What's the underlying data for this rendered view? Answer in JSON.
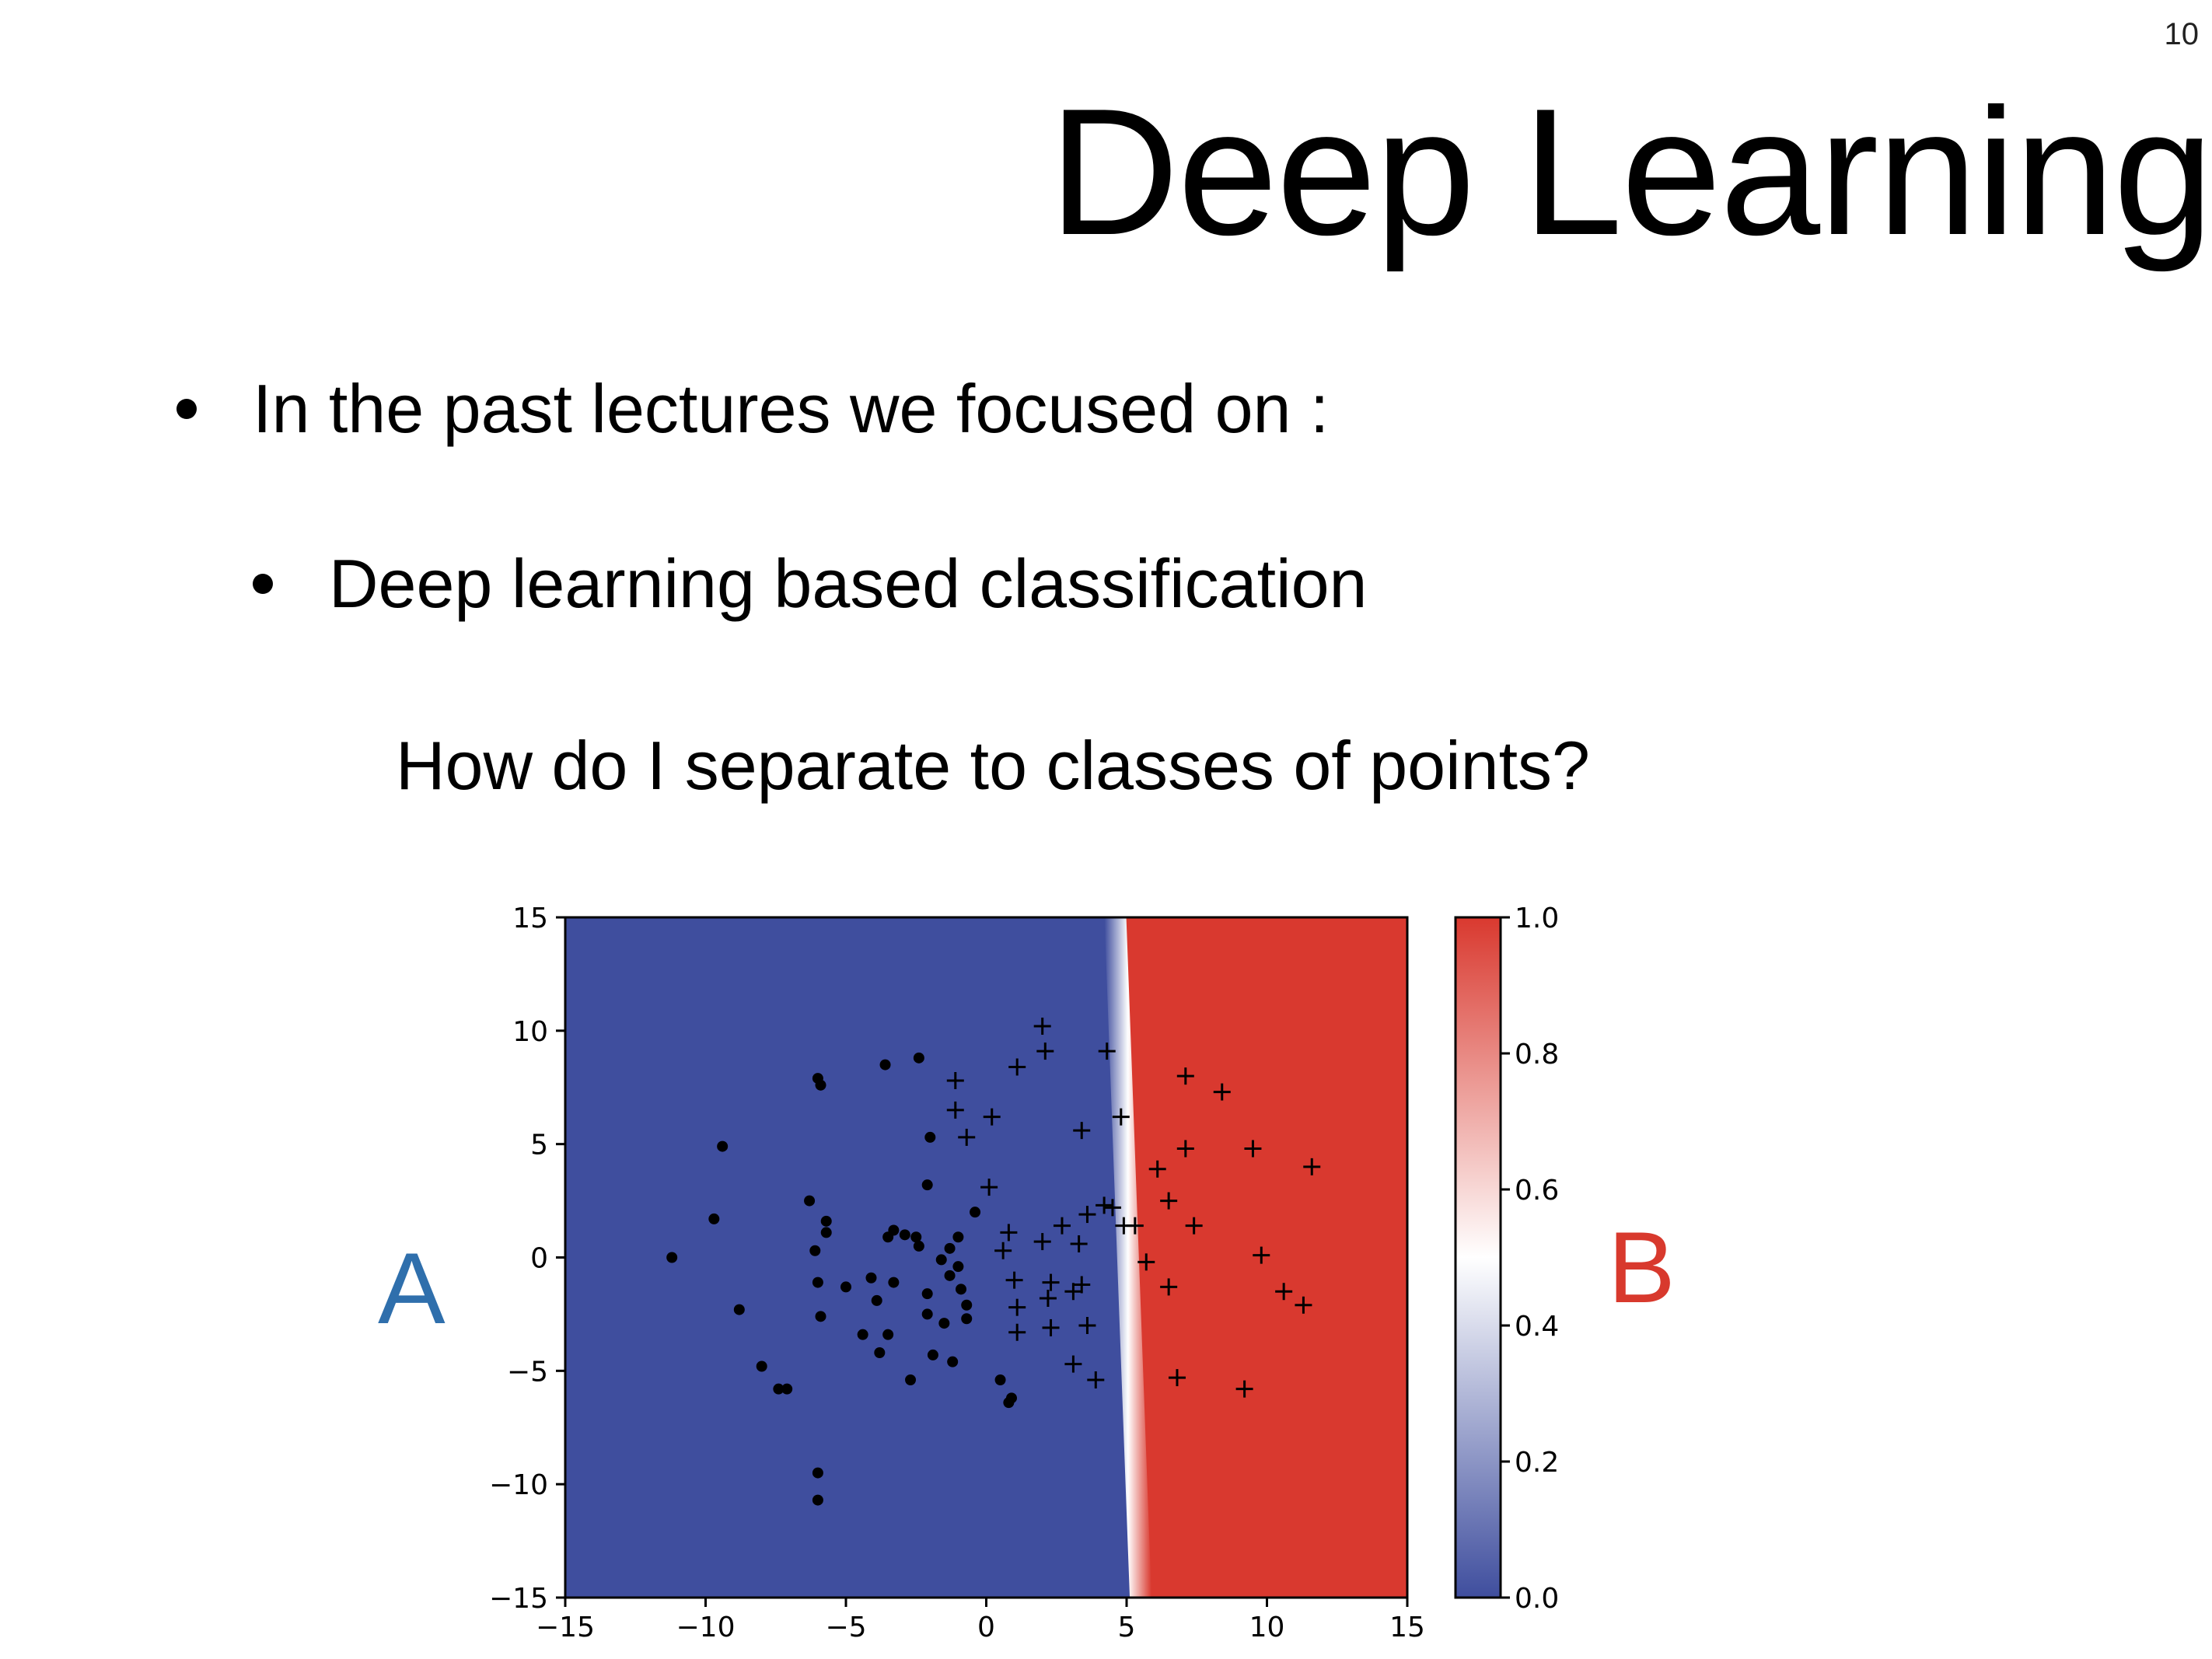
{
  "slide": {
    "page_number": "10",
    "title": "Deep Learning",
    "bullets": [
      "In the past lectures we focused on :",
      "Deep learning based classification"
    ],
    "question": "How do I separate to classes of points?",
    "class_labels": {
      "a": "A",
      "b": "B"
    }
  },
  "colors": {
    "blue": "#3f4e9e",
    "red": "#d9392f",
    "label_a": "#2f6fac",
    "label_b": "#d8392d"
  },
  "chart_data": {
    "type": "scatter",
    "background": "classifier decision map",
    "xlim": [
      -15,
      15
    ],
    "ylim": [
      -15,
      15
    ],
    "xticks": [
      -15,
      -10,
      -5,
      0,
      5,
      10,
      15
    ],
    "yticks": [
      -15,
      -10,
      -5,
      0,
      5,
      10,
      15
    ],
    "xtick_labels": [
      "−15",
      "−10",
      "−5",
      "0",
      "5",
      "10",
      "15"
    ],
    "ytick_labels": [
      "−15",
      "−10",
      "−5",
      "0",
      "5",
      "10",
      "15"
    ],
    "boundary": [
      [
        4.6,
        15
      ],
      [
        5.5,
        -15
      ]
    ],
    "colorbar": {
      "range": [
        0.0,
        1.0
      ],
      "ticks": [
        0.0,
        0.2,
        0.4,
        0.6,
        0.8,
        1.0
      ],
      "tick_labels": [
        "0.0",
        "0.2",
        "0.4",
        "0.6",
        "0.8",
        "1.0"
      ],
      "colors": [
        "#3f4e9e",
        "#ffffff",
        "#d9392f"
      ]
    },
    "series": [
      {
        "marker": "dot",
        "points": [
          [
            -11.2,
            0
          ],
          [
            -9.7,
            1.7
          ],
          [
            -9.4,
            4.9
          ],
          [
            -8.8,
            -2.3
          ],
          [
            -8.0,
            -4.8
          ],
          [
            -7.4,
            -5.8
          ],
          [
            -7.1,
            -5.8
          ],
          [
            -6.3,
            2.5
          ],
          [
            -6.1,
            0.3
          ],
          [
            -6.0,
            7.9
          ],
          [
            -5.9,
            7.6
          ],
          [
            -6.0,
            -1.1
          ],
          [
            -5.9,
            -2.6
          ],
          [
            -5.7,
            1.6
          ],
          [
            -5.7,
            1.1
          ],
          [
            -6.0,
            -9.5
          ],
          [
            -6.0,
            -10.7
          ],
          [
            -5.0,
            -1.3
          ],
          [
            -4.4,
            -3.4
          ],
          [
            -4.1,
            -0.9
          ],
          [
            -3.9,
            -1.9
          ],
          [
            -3.8,
            -4.2
          ],
          [
            -3.5,
            -3.4
          ],
          [
            -3.6,
            8.5
          ],
          [
            -3.5,
            0.9
          ],
          [
            -3.3,
            -1.1
          ],
          [
            -3.3,
            1.2
          ],
          [
            -2.9,
            1.0
          ],
          [
            -2.7,
            -5.4
          ],
          [
            -2.5,
            0.9
          ],
          [
            -2.4,
            8.8
          ],
          [
            -2.4,
            0.5
          ],
          [
            -2.1,
            -1.6
          ],
          [
            -2.1,
            -2.5
          ],
          [
            -2.1,
            3.2
          ],
          [
            -2.0,
            5.3
          ],
          [
            -1.9,
            -4.3
          ],
          [
            -1.6,
            -0.1
          ],
          [
            -1.5,
            -2.9
          ],
          [
            -1.3,
            -0.8
          ],
          [
            -1.3,
            0.4
          ],
          [
            -1.2,
            -4.6
          ],
          [
            -1.0,
            0.9
          ],
          [
            -1.0,
            -0.4
          ],
          [
            -0.9,
            -1.4
          ],
          [
            -0.7,
            -2.1
          ],
          [
            -0.7,
            -2.7
          ],
          [
            -0.4,
            2.0
          ],
          [
            0.5,
            -5.4
          ],
          [
            0.8,
            -6.4
          ],
          [
            0.9,
            -6.2
          ]
        ]
      },
      {
        "marker": "plus",
        "points": [
          [
            -1.1,
            7.8
          ],
          [
            -1.1,
            6.5
          ],
          [
            -0.7,
            5.3
          ],
          [
            0.1,
            3.1
          ],
          [
            0.2,
            6.2
          ],
          [
            0.6,
            0.3
          ],
          [
            0.8,
            1.1
          ],
          [
            1.0,
            -1.0
          ],
          [
            1.1,
            8.4
          ],
          [
            1.1,
            -2.2
          ],
          [
            1.1,
            -3.3
          ],
          [
            2.0,
            10.2
          ],
          [
            2.1,
            9.1
          ],
          [
            2.0,
            0.7
          ],
          [
            2.2,
            -1.8
          ],
          [
            2.3,
            -1.1
          ],
          [
            2.3,
            -3.1
          ],
          [
            2.7,
            1.4
          ],
          [
            3.1,
            -4.7
          ],
          [
            3.1,
            -1.5
          ],
          [
            3.3,
            0.6
          ],
          [
            3.4,
            5.6
          ],
          [
            3.4,
            -1.2
          ],
          [
            3.6,
            1.9
          ],
          [
            3.6,
            -3.0
          ],
          [
            3.9,
            -5.4
          ],
          [
            4.2,
            2.3
          ],
          [
            4.3,
            9.1
          ],
          [
            4.5,
            2.2
          ],
          [
            4.8,
            6.2
          ],
          [
            4.9,
            1.4
          ],
          [
            5.3,
            1.4
          ],
          [
            5.7,
            -0.2
          ],
          [
            6.1,
            3.9
          ],
          [
            6.5,
            2.5
          ],
          [
            6.5,
            -1.3
          ],
          [
            6.8,
            -5.3
          ],
          [
            7.1,
            8.0
          ],
          [
            7.1,
            4.8
          ],
          [
            7.4,
            1.4
          ],
          [
            8.4,
            7.3
          ],
          [
            9.2,
            -5.8
          ],
          [
            9.5,
            4.8
          ],
          [
            9.8,
            0.1
          ],
          [
            10.6,
            -1.5
          ],
          [
            11.3,
            -2.1
          ],
          [
            11.6,
            4.0
          ]
        ]
      }
    ]
  }
}
